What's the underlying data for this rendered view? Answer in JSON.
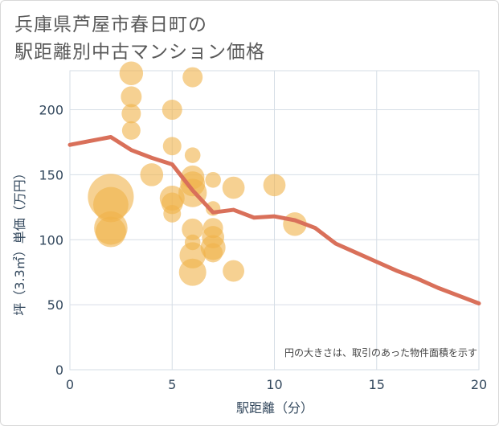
{
  "title_lines": [
    "兵庫県芦屋市春日町の",
    "駅距離別中古マンション価格"
  ],
  "chart_data": {
    "type": "scatter",
    "xlabel": "駅距離（分）",
    "ylabel": "坪（3.3㎡）単価（万円）",
    "annotation": "円の大きさは、取引のあった物件面積を示す",
    "xlim": [
      0,
      20
    ],
    "ylim": [
      0,
      230
    ],
    "xticks": [
      0,
      5,
      10,
      15,
      20
    ],
    "yticks": [
      0,
      50,
      100,
      150,
      200
    ],
    "grid": true,
    "colors": {
      "bubble": "#f0b24a",
      "line": "#d9705a",
      "grid": "#d6dee6",
      "axis_text": "#34495e"
    },
    "bubbles": [
      {
        "x": 2,
        "y": 133,
        "size": 3.4
      },
      {
        "x": 2,
        "y": 127,
        "size": 2.0
      },
      {
        "x": 2,
        "y": 109,
        "size": 1.8
      },
      {
        "x": 2,
        "y": 106,
        "size": 1.5
      },
      {
        "x": 3,
        "y": 228,
        "size": 0.9
      },
      {
        "x": 3,
        "y": 210,
        "size": 0.7
      },
      {
        "x": 3,
        "y": 197,
        "size": 0.6
      },
      {
        "x": 3,
        "y": 184,
        "size": 0.55
      },
      {
        "x": 4,
        "y": 150,
        "size": 0.85
      },
      {
        "x": 5,
        "y": 200,
        "size": 0.65
      },
      {
        "x": 5,
        "y": 172,
        "size": 0.55
      },
      {
        "x": 5,
        "y": 132,
        "size": 1.0
      },
      {
        "x": 5,
        "y": 128,
        "size": 0.75
      },
      {
        "x": 5,
        "y": 120,
        "size": 0.5
      },
      {
        "x": 6,
        "y": 225,
        "size": 0.65
      },
      {
        "x": 6,
        "y": 165,
        "size": 0.4
      },
      {
        "x": 6,
        "y": 148,
        "size": 0.9
      },
      {
        "x": 6,
        "y": 143,
        "size": 1.0
      },
      {
        "x": 6,
        "y": 136,
        "size": 1.3
      },
      {
        "x": 6,
        "y": 108,
        "size": 0.75
      },
      {
        "x": 6,
        "y": 98,
        "size": 0.4
      },
      {
        "x": 6,
        "y": 88,
        "size": 1.1
      },
      {
        "x": 6,
        "y": 75,
        "size": 1.2
      },
      {
        "x": 7,
        "y": 146,
        "size": 0.4
      },
      {
        "x": 7,
        "y": 124,
        "size": 0.35
      },
      {
        "x": 7,
        "y": 109,
        "size": 0.65
      },
      {
        "x": 7,
        "y": 102,
        "size": 0.8
      },
      {
        "x": 7,
        "y": 94,
        "size": 1.0
      },
      {
        "x": 7,
        "y": 90,
        "size": 0.6
      },
      {
        "x": 8,
        "y": 140,
        "size": 0.8
      },
      {
        "x": 8,
        "y": 76,
        "size": 0.75
      },
      {
        "x": 10,
        "y": 142,
        "size": 0.8
      },
      {
        "x": 11,
        "y": 112,
        "size": 0.9
      }
    ],
    "line": {
      "x": [
        0,
        1,
        2,
        3,
        4,
        5,
        6,
        7,
        8,
        9,
        10,
        11,
        12,
        13,
        14,
        15,
        16,
        17,
        18,
        19,
        20
      ],
      "y": [
        173,
        176,
        179,
        169,
        163,
        158,
        138,
        121,
        123,
        117,
        118,
        115,
        109,
        97,
        90,
        83,
        76,
        70,
        63,
        57,
        51
      ]
    }
  }
}
